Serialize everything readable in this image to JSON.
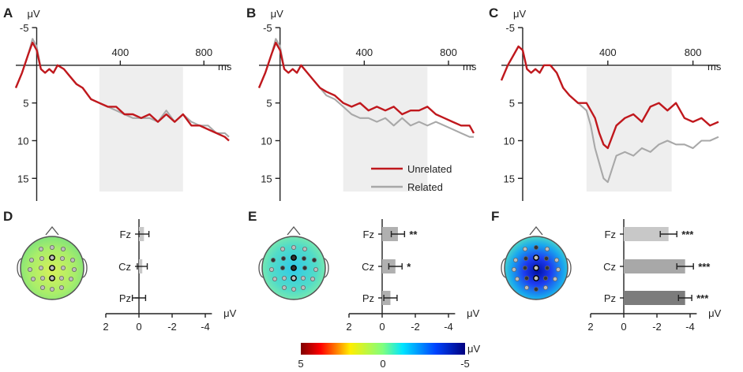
{
  "figure": {
    "legend": [
      {
        "name": "Unrelated",
        "color": "#c0181d"
      },
      {
        "name": "Related",
        "color": "#a8a8a8"
      }
    ],
    "colorbar": {
      "unit": "μV",
      "ticks": [
        "5",
        "0",
        "-5"
      ]
    }
  },
  "chart_data": [
    {
      "panel": "A",
      "type": "line",
      "ylabel": "μV",
      "xlabel": "ms",
      "xlim": [
        -100,
        920
      ],
      "ylim": [
        -5,
        18
      ],
      "y_inverted": true,
      "xticks": [
        "400",
        "800"
      ],
      "yticks": [
        "-5",
        "5",
        "10",
        "15"
      ],
      "shaded_window": [
        300,
        700
      ],
      "series": [
        {
          "name": "Unrelated",
          "x": [
            -100,
            -70,
            -40,
            -20,
            0,
            20,
            40,
            60,
            80,
            100,
            130,
            160,
            190,
            220,
            260,
            300,
            340,
            380,
            420,
            460,
            500,
            540,
            580,
            620,
            660,
            700,
            740,
            780,
            820,
            860,
            900,
            920
          ],
          "y": [
            3,
            1,
            -1.5,
            -3,
            -2,
            0.5,
            1,
            0.5,
            1,
            0,
            0.5,
            1.5,
            2.5,
            3,
            4.5,
            5,
            5.5,
            5.5,
            6.5,
            6.5,
            7,
            6.5,
            7.5,
            6.5,
            7.5,
            6.5,
            8,
            8,
            8.5,
            9,
            9.5,
            10
          ]
        },
        {
          "name": "Related",
          "x": [
            -100,
            -70,
            -40,
            -20,
            0,
            20,
            40,
            60,
            80,
            100,
            130,
            160,
            190,
            220,
            260,
            300,
            340,
            380,
            420,
            460,
            500,
            540,
            580,
            620,
            660,
            700,
            740,
            780,
            820,
            860,
            900,
            920
          ],
          "y": [
            3,
            1,
            -1.5,
            -3.5,
            -2.5,
            0.5,
            1,
            0.5,
            1,
            0,
            0.5,
            1.5,
            2.5,
            3,
            4.5,
            5,
            5.5,
            6,
            6.5,
            7,
            7,
            7,
            7.5,
            6,
            7.5,
            6.5,
            7.5,
            8,
            8,
            9,
            9,
            9.5
          ]
        }
      ]
    },
    {
      "panel": "B",
      "type": "line",
      "ylabel": "μV",
      "xlabel": "ms",
      "xlim": [
        -100,
        920
      ],
      "ylim": [
        -5,
        18
      ],
      "y_inverted": true,
      "xticks": [
        "400",
        "800"
      ],
      "yticks": [
        "-5",
        "5",
        "10",
        "15"
      ],
      "shaded_window": [
        300,
        700
      ],
      "series": [
        {
          "name": "Unrelated",
          "x": [
            -100,
            -70,
            -40,
            -20,
            0,
            20,
            40,
            60,
            80,
            100,
            130,
            160,
            190,
            220,
            260,
            300,
            340,
            380,
            420,
            460,
            500,
            540,
            580,
            620,
            660,
            700,
            740,
            780,
            820,
            860,
            900,
            920
          ],
          "y": [
            3,
            1,
            -1.5,
            -3,
            -2,
            0.5,
            1,
            0.5,
            1,
            0,
            1,
            2,
            3,
            3.5,
            4,
            5,
            5.5,
            5,
            6,
            5.5,
            6,
            5.5,
            6.5,
            6,
            6,
            5.5,
            6.5,
            7,
            7.5,
            8,
            8,
            9
          ]
        },
        {
          "name": "Related",
          "x": [
            -100,
            -70,
            -40,
            -20,
            0,
            20,
            40,
            60,
            80,
            100,
            130,
            160,
            190,
            220,
            260,
            300,
            340,
            380,
            420,
            460,
            500,
            540,
            580,
            620,
            660,
            700,
            740,
            780,
            820,
            860,
            900,
            920
          ],
          "y": [
            3,
            1,
            -1.5,
            -3.5,
            -2.5,
            0.5,
            1,
            0.5,
            1,
            0,
            1,
            2,
            3,
            4,
            4.5,
            5.5,
            6.5,
            7,
            7,
            7.5,
            7,
            8,
            7,
            8,
            7.5,
            8,
            7.5,
            8,
            8.5,
            9,
            9.5,
            9.5
          ]
        }
      ]
    },
    {
      "panel": "C",
      "type": "line",
      "ylabel": "μV",
      "xlabel": "ms",
      "xlim": [
        -100,
        920
      ],
      "ylim": [
        -5,
        18
      ],
      "y_inverted": true,
      "xticks": [
        "400",
        "800"
      ],
      "yticks": [
        "-5",
        "5",
        "10",
        "15"
      ],
      "shaded_window": [
        300,
        700
      ],
      "series": [
        {
          "name": "Unrelated",
          "x": [
            -100,
            -70,
            -40,
            -20,
            0,
            20,
            40,
            60,
            80,
            100,
            130,
            160,
            190,
            220,
            260,
            300,
            320,
            340,
            360,
            380,
            400,
            440,
            480,
            520,
            560,
            600,
            640,
            680,
            720,
            760,
            800,
            840,
            880,
            920
          ],
          "y": [
            2,
            0,
            -1.5,
            -2.5,
            -2,
            0.5,
            1,
            0.5,
            1,
            0,
            0,
            1,
            3,
            4,
            5,
            5,
            6,
            7,
            9,
            10.5,
            11,
            8,
            7,
            6.5,
            7.5,
            5.5,
            5,
            6,
            5,
            7,
            7.5,
            7,
            8,
            7.5
          ]
        },
        {
          "name": "Related",
          "x": [
            -100,
            -70,
            -40,
            -20,
            0,
            20,
            40,
            60,
            80,
            100,
            130,
            160,
            190,
            220,
            260,
            300,
            320,
            340,
            360,
            380,
            400,
            440,
            480,
            520,
            560,
            600,
            640,
            680,
            720,
            760,
            800,
            840,
            880,
            920
          ],
          "y": [
            2,
            0,
            -1.5,
            -2.5,
            -2,
            0.5,
            1,
            0.5,
            1,
            0,
            0,
            1,
            3,
            4,
            5,
            6,
            8,
            11,
            13,
            15,
            15.5,
            12,
            11.5,
            12,
            11,
            11.5,
            10.5,
            10,
            10.5,
            10.5,
            11,
            10,
            10,
            9.5
          ]
        }
      ]
    },
    {
      "panel": "D",
      "type": "bar",
      "orientation": "horizontal",
      "xlabel": "μV",
      "xlim": [
        2,
        -5.2
      ],
      "xticks": [
        "2",
        "0",
        "-2",
        "-4"
      ],
      "categories": [
        "Fz",
        "Cz",
        "Pz"
      ],
      "values": [
        -0.3,
        -0.2,
        0.0
      ],
      "errors": [
        0.3,
        0.3,
        0.4
      ],
      "significance": [
        "",
        "",
        ""
      ],
      "bar_color": "#c8c8c8"
    },
    {
      "panel": "E",
      "type": "bar",
      "orientation": "horizontal",
      "xlabel": "μV",
      "xlim": [
        2,
        -5.2
      ],
      "xticks": [
        "2",
        "0",
        "-2",
        "-4"
      ],
      "categories": [
        "Fz",
        "Cz",
        "Pz"
      ],
      "values": [
        -0.95,
        -0.8,
        -0.5
      ],
      "errors": [
        0.4,
        0.4,
        0.4
      ],
      "significance": [
        "**",
        "*",
        ""
      ],
      "bar_color": "#b0b0b0"
    },
    {
      "panel": "F",
      "type": "bar",
      "orientation": "horizontal",
      "xlabel": "μV",
      "xlim": [
        2,
        -5.2
      ],
      "xticks": [
        "2",
        "0",
        "-2",
        "-4"
      ],
      "categories": [
        "Fz",
        "Cz",
        "Pz"
      ],
      "values": [
        -2.7,
        -3.7,
        -3.7
      ],
      "errors": [
        0.5,
        0.5,
        0.4
      ],
      "significance": [
        "***",
        "***",
        "***"
      ],
      "bar_colors": [
        "#c8c8c8",
        "#a8a8a8",
        "#7c7c7c"
      ]
    }
  ]
}
